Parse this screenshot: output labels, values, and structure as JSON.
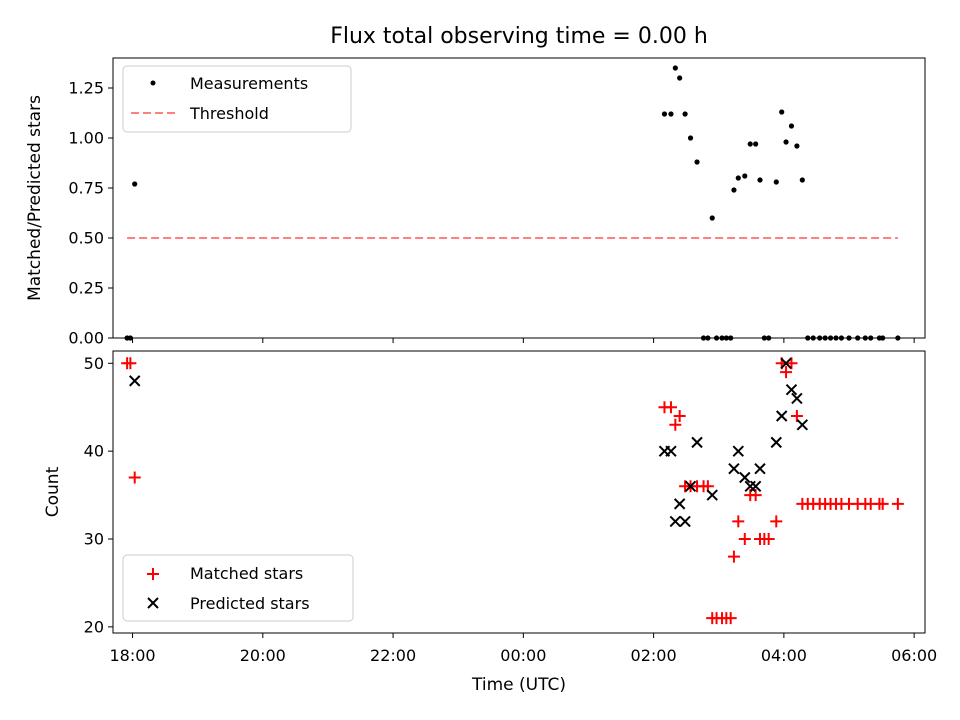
{
  "title": "Flux total observing time = 0.00 h",
  "colors": {
    "measurements": "#000000",
    "threshold": "#ff7f7f",
    "matched": "#ff0000",
    "predicted": "#000000",
    "legend_border": "#cccccc"
  },
  "chart_data": [
    {
      "type": "scatter",
      "panel": "top",
      "ylabel": "Matched/Predicted stars",
      "ylim": [
        0.0,
        1.4
      ],
      "yticks": [
        0.0,
        0.25,
        0.5,
        0.75,
        1.0,
        1.25
      ],
      "ytick_labels": [
        "0.00",
        "0.25",
        "0.50",
        "0.75",
        "1.00",
        "1.25"
      ],
      "xlim": [
        "17:42",
        "06:10"
      ],
      "x_tick_labels_hidden": true,
      "legend_placement": "upper left",
      "series": [
        {
          "name": "Measurements",
          "marker": "dot",
          "color": "#000000",
          "points": [
            {
              "x": "17:55",
              "y": 0.0
            },
            {
              "x": "17:58",
              "y": 0.0
            },
            {
              "x": "18:02",
              "y": 0.77
            },
            {
              "x": "02:10",
              "y": 1.12
            },
            {
              "x": "02:16",
              "y": 1.12
            },
            {
              "x": "02:20",
              "y": 1.35
            },
            {
              "x": "02:24",
              "y": 1.3
            },
            {
              "x": "02:29",
              "y": 1.12
            },
            {
              "x": "02:34",
              "y": 1.0
            },
            {
              "x": "02:40",
              "y": 0.88
            },
            {
              "x": "02:46",
              "y": 0.0
            },
            {
              "x": "02:50",
              "y": 0.0
            },
            {
              "x": "02:54",
              "y": 0.6
            },
            {
              "x": "02:58",
              "y": 0.0
            },
            {
              "x": "03:03",
              "y": 0.0
            },
            {
              "x": "03:07",
              "y": 0.0
            },
            {
              "x": "03:11",
              "y": 0.0
            },
            {
              "x": "03:14",
              "y": 0.74
            },
            {
              "x": "03:18",
              "y": 0.8
            },
            {
              "x": "03:24",
              "y": 0.81
            },
            {
              "x": "03:29",
              "y": 0.97
            },
            {
              "x": "03:34",
              "y": 0.97
            },
            {
              "x": "03:38",
              "y": 0.79
            },
            {
              "x": "03:42",
              "y": 0.0
            },
            {
              "x": "03:46",
              "y": 0.0
            },
            {
              "x": "03:53",
              "y": 0.78
            },
            {
              "x": "03:58",
              "y": 1.13
            },
            {
              "x": "04:02",
              "y": 0.98
            },
            {
              "x": "04:07",
              "y": 1.06
            },
            {
              "x": "04:12",
              "y": 0.96
            },
            {
              "x": "04:17",
              "y": 0.79
            },
            {
              "x": "04:22",
              "y": 0.0
            },
            {
              "x": "04:27",
              "y": 0.0
            },
            {
              "x": "04:33",
              "y": 0.0
            },
            {
              "x": "04:38",
              "y": 0.0
            },
            {
              "x": "04:43",
              "y": 0.0
            },
            {
              "x": "04:48",
              "y": 0.0
            },
            {
              "x": "04:53",
              "y": 0.0
            },
            {
              "x": "05:00",
              "y": 0.0
            },
            {
              "x": "05:08",
              "y": 0.0
            },
            {
              "x": "05:15",
              "y": 0.0
            },
            {
              "x": "05:20",
              "y": 0.0
            },
            {
              "x": "05:28",
              "y": 0.0
            },
            {
              "x": "05:31",
              "y": 0.0
            },
            {
              "x": "05:45",
              "y": 0.0
            }
          ]
        },
        {
          "name": "Threshold",
          "line": "dashed",
          "color": "#ff7f7f",
          "points": [
            {
              "x": "17:55",
              "y": 0.5
            },
            {
              "x": "05:45",
              "y": 0.5
            }
          ]
        }
      ]
    },
    {
      "type": "scatter",
      "panel": "bottom",
      "xlabel": "Time (UTC)",
      "ylabel": "Count",
      "ylim": [
        19.3,
        51.4
      ],
      "yticks": [
        20,
        30,
        40,
        50
      ],
      "ytick_labels": [
        "20",
        "30",
        "40",
        "50"
      ],
      "xlim": [
        "17:42",
        "06:10"
      ],
      "xticks": [
        "18:00",
        "20:00",
        "22:00",
        "00:00",
        "02:00",
        "04:00",
        "06:00"
      ],
      "legend_placement": "lower left",
      "series": [
        {
          "name": "Matched stars",
          "marker": "plus",
          "color": "#ff0000",
          "points": [
            {
              "x": "17:55",
              "y": 50
            },
            {
              "x": "17:58",
              "y": 50
            },
            {
              "x": "18:02",
              "y": 37
            },
            {
              "x": "02:10",
              "y": 45
            },
            {
              "x": "02:16",
              "y": 45
            },
            {
              "x": "02:20",
              "y": 43
            },
            {
              "x": "02:24",
              "y": 44
            },
            {
              "x": "02:29",
              "y": 36
            },
            {
              "x": "02:34",
              "y": 36
            },
            {
              "x": "02:40",
              "y": 36
            },
            {
              "x": "02:46",
              "y": 36
            },
            {
              "x": "02:50",
              "y": 36
            },
            {
              "x": "02:54",
              "y": 21
            },
            {
              "x": "02:58",
              "y": 21
            },
            {
              "x": "03:03",
              "y": 21
            },
            {
              "x": "03:07",
              "y": 21
            },
            {
              "x": "03:11",
              "y": 21
            },
            {
              "x": "03:14",
              "y": 28
            },
            {
              "x": "03:18",
              "y": 32
            },
            {
              "x": "03:24",
              "y": 30
            },
            {
              "x": "03:29",
              "y": 35
            },
            {
              "x": "03:34",
              "y": 35
            },
            {
              "x": "03:38",
              "y": 30
            },
            {
              "x": "03:42",
              "y": 30
            },
            {
              "x": "03:46",
              "y": 30
            },
            {
              "x": "03:53",
              "y": 32
            },
            {
              "x": "03:58",
              "y": 50
            },
            {
              "x": "04:02",
              "y": 49
            },
            {
              "x": "04:07",
              "y": 50
            },
            {
              "x": "04:12",
              "y": 44
            },
            {
              "x": "04:17",
              "y": 34
            },
            {
              "x": "04:22",
              "y": 34
            },
            {
              "x": "04:27",
              "y": 34
            },
            {
              "x": "04:33",
              "y": 34
            },
            {
              "x": "04:38",
              "y": 34
            },
            {
              "x": "04:43",
              "y": 34
            },
            {
              "x": "04:48",
              "y": 34
            },
            {
              "x": "04:53",
              "y": 34
            },
            {
              "x": "05:00",
              "y": 34
            },
            {
              "x": "05:08",
              "y": 34
            },
            {
              "x": "05:15",
              "y": 34
            },
            {
              "x": "05:20",
              "y": 34
            },
            {
              "x": "05:28",
              "y": 34
            },
            {
              "x": "05:31",
              "y": 34
            },
            {
              "x": "05:45",
              "y": 34
            }
          ]
        },
        {
          "name": "Predicted stars",
          "marker": "x",
          "color": "#000000",
          "points": [
            {
              "x": "18:02",
              "y": 48
            },
            {
              "x": "02:10",
              "y": 40
            },
            {
              "x": "02:16",
              "y": 40
            },
            {
              "x": "02:20",
              "y": 32
            },
            {
              "x": "02:24",
              "y": 34
            },
            {
              "x": "02:29",
              "y": 32
            },
            {
              "x": "02:34",
              "y": 36
            },
            {
              "x": "02:40",
              "y": 41
            },
            {
              "x": "02:54",
              "y": 35
            },
            {
              "x": "03:14",
              "y": 38
            },
            {
              "x": "03:18",
              "y": 40
            },
            {
              "x": "03:24",
              "y": 37
            },
            {
              "x": "03:29",
              "y": 36
            },
            {
              "x": "03:34",
              "y": 36
            },
            {
              "x": "03:38",
              "y": 38
            },
            {
              "x": "03:53",
              "y": 41
            },
            {
              "x": "03:58",
              "y": 44
            },
            {
              "x": "04:02",
              "y": 50
            },
            {
              "x": "04:07",
              "y": 47
            },
            {
              "x": "04:12",
              "y": 46
            },
            {
              "x": "04:17",
              "y": 43
            }
          ]
        }
      ]
    }
  ]
}
